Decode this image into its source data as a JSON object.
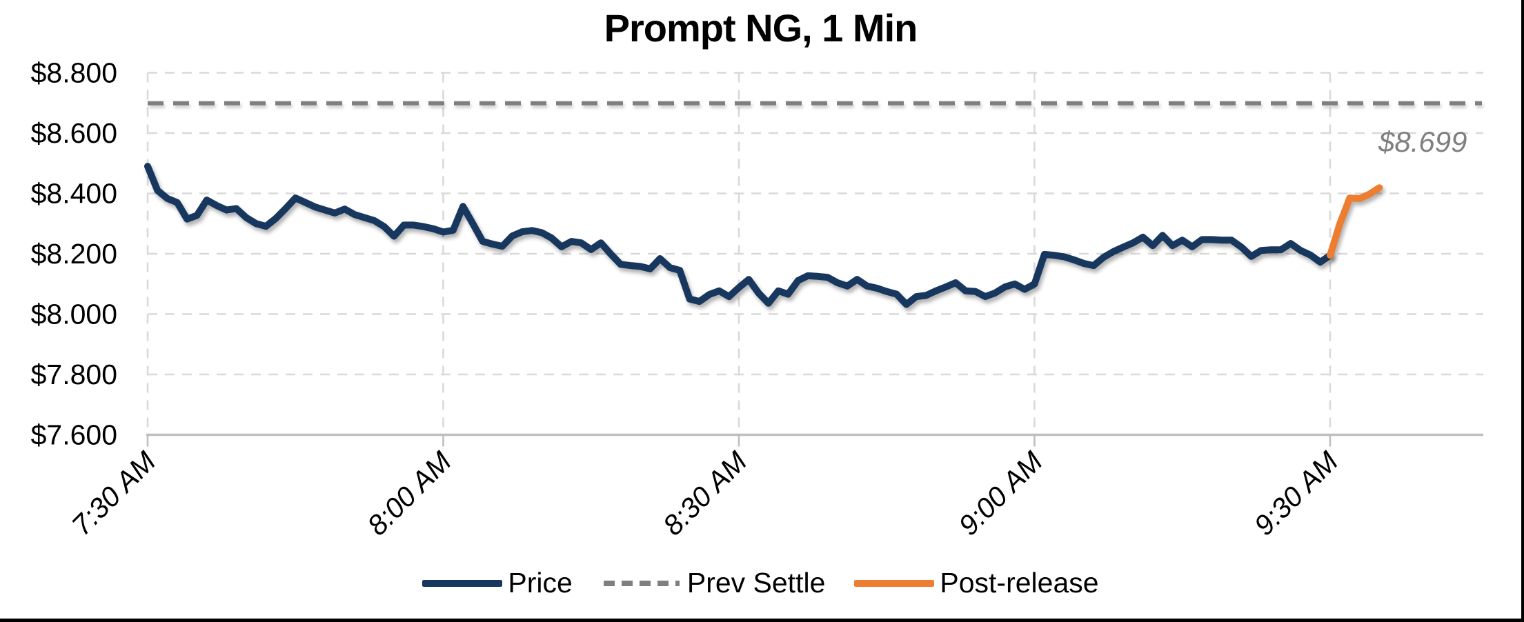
{
  "title": "Prompt NG, 1 Min",
  "annotation": {
    "text": "$8.699",
    "color": "#7F7F7F"
  },
  "legend": {
    "items": [
      {
        "label": "Price",
        "color": "#17375E",
        "dashed": false
      },
      {
        "label": "Prev Settle",
        "color": "#7F7F7F",
        "dashed": true
      },
      {
        "label": "Post-release",
        "color": "#ED7D31",
        "dashed": false
      }
    ]
  },
  "colors": {
    "price": "#17375E",
    "prev_settle": "#7F7F7F",
    "post_release": "#ED7D31",
    "gridline": "#D9D9D9",
    "axis": "#BFBFBF",
    "annotation": "#7F7F7F"
  },
  "chart_data": {
    "type": "line",
    "title": "Prompt NG, 1 Min",
    "xlabel": "",
    "ylabel": "",
    "ylim": [
      7.6,
      8.8
    ],
    "y_ticks": [
      {
        "label": "$8.800",
        "value": 8.8
      },
      {
        "label": "$8.600",
        "value": 8.6
      },
      {
        "label": "$8.400",
        "value": 8.4
      },
      {
        "label": "$8.200",
        "value": 8.2
      },
      {
        "label": "$8.000",
        "value": 8.0
      },
      {
        "label": "$7.800",
        "value": 7.8
      },
      {
        "label": "$7.600",
        "value": 7.6
      }
    ],
    "x_ticks": [
      "7:30 AM",
      "8:00 AM",
      "8:30 AM",
      "9:00 AM",
      "9:30 AM"
    ],
    "x_domain_minutes": [
      "7:30 AM",
      "9:45 AM"
    ],
    "grid": "dashed-light",
    "legend_position": "bottom",
    "series": [
      {
        "name": "Price",
        "start_time": "7:30 AM",
        "interval_minutes": 1,
        "values": [
          8.49,
          8.41,
          8.383,
          8.37,
          8.315,
          8.327,
          8.378,
          8.36,
          8.345,
          8.35,
          8.32,
          8.3,
          8.291,
          8.317,
          8.35,
          8.385,
          8.37,
          8.355,
          8.345,
          8.335,
          8.348,
          8.33,
          8.32,
          8.31,
          8.29,
          8.258,
          8.295,
          8.295,
          8.29,
          8.283,
          8.272,
          8.278,
          8.357,
          8.3,
          8.241,
          8.232,
          8.225,
          8.259,
          8.273,
          8.277,
          8.27,
          8.252,
          8.223,
          8.241,
          8.236,
          8.214,
          8.236,
          8.199,
          8.165,
          8.161,
          8.158,
          8.15,
          8.184,
          8.154,
          8.145,
          8.05,
          8.042,
          8.065,
          8.077,
          8.058,
          8.088,
          8.115,
          8.07,
          8.036,
          8.077,
          8.066,
          8.111,
          8.127,
          8.125,
          8.122,
          8.104,
          8.093,
          8.115,
          8.093,
          8.086,
          8.075,
          8.066,
          8.032,
          8.058,
          8.062,
          8.077,
          8.09,
          8.104,
          8.077,
          8.075,
          8.058,
          8.07,
          8.09,
          8.1,
          8.082,
          8.1,
          8.198,
          8.195,
          8.19,
          8.18,
          8.168,
          8.161,
          8.188,
          8.207,
          8.222,
          8.236,
          8.255,
          8.227,
          8.261,
          8.227,
          8.245,
          8.223,
          8.247,
          8.247,
          8.245,
          8.245,
          8.222,
          8.191,
          8.211,
          8.213,
          8.213,
          8.234,
          8.211,
          8.196,
          8.172,
          8.195
        ]
      },
      {
        "name": "Prev Settle",
        "style": "dashed",
        "constant_value": 8.699
      },
      {
        "name": "Post-release",
        "start_time": "9:30 AM",
        "interval_minutes": 1,
        "values": [
          8.195,
          8.3,
          8.385,
          8.383,
          8.398,
          8.419
        ]
      }
    ]
  }
}
